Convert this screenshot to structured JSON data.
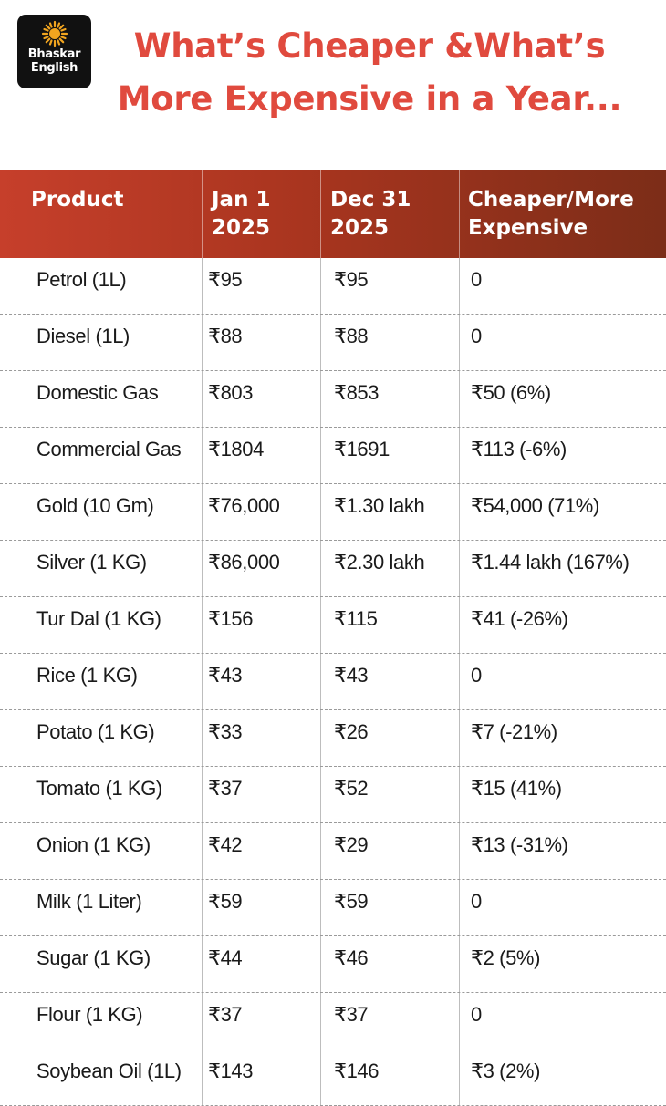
{
  "header": {
    "logo_line1": "Bhaskar",
    "logo_line2": "English",
    "title_line1": "What’s Cheaper &What’s",
    "title_line2": "More Expensive in a Year..."
  },
  "colors": {
    "title": "#e04a3e",
    "header_gradient_start": "#c63f2b",
    "header_gradient_end": "#7c2d18",
    "logo_sun": "#f2a51f"
  },
  "table": {
    "columns": [
      "Product",
      "Jan 1\n2025",
      "Dec 31\n2025",
      "Cheaper/More\nExpensive"
    ],
    "rows": [
      [
        "Petrol (1L)",
        "₹95",
        "₹95",
        "0"
      ],
      [
        "Diesel (1L)",
        "₹88",
        "₹88",
        "0"
      ],
      [
        "Domestic Gas",
        "₹803",
        "₹853",
        "₹50 (6%)"
      ],
      [
        "Commercial Gas",
        "₹1804",
        "₹1691",
        "₹113 (-6%)"
      ],
      [
        "Gold (10 Gm)",
        "₹76,000",
        "₹1.30 lakh",
        "₹54,000 (71%)"
      ],
      [
        "Silver (1 KG)",
        "₹86,000",
        "₹2.30 lakh",
        "₹1.44 lakh (167%)"
      ],
      [
        "Tur Dal (1 KG)",
        "₹156",
        "₹115",
        "₹41 (-26%)"
      ],
      [
        "Rice (1 KG)",
        "₹43",
        "₹43",
        "0"
      ],
      [
        "Potato (1 KG)",
        "₹33",
        "₹26",
        "₹7 (-21%)"
      ],
      [
        "Tomato (1 KG)",
        "₹37",
        "₹52",
        "₹15 (41%)"
      ],
      [
        "Onion (1 KG)",
        "₹42",
        "₹29",
        "₹13 (-31%)"
      ],
      [
        "Milk (1 Liter)",
        "₹59",
        "₹59",
        "0"
      ],
      [
        "Sugar (1 KG)",
        "₹44",
        "₹46",
        "₹2 (5%)"
      ],
      [
        "Flour (1 KG)",
        "₹37",
        "₹37",
        "0"
      ],
      [
        "Soybean Oil (1L)",
        "₹143",
        "₹146",
        "₹3 (2%)"
      ]
    ]
  }
}
